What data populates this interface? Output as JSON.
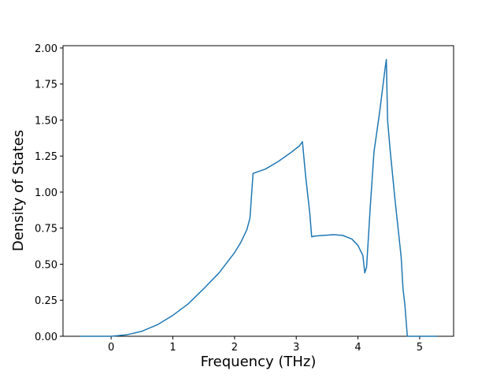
{
  "chart_data": {
    "type": "line",
    "x_label": "Frequency (THz)",
    "y_label": "Density of States",
    "x": [
      -0.5,
      0,
      0.25,
      0.5,
      0.75,
      1,
      1.25,
      1.5,
      1.75,
      2,
      2.1,
      2.2,
      2.25,
      2.3,
      2.5,
      2.7,
      2.9,
      3.05,
      3.1,
      3.15,
      3.22,
      3.25,
      3.3,
      3.45,
      3.6,
      3.75,
      3.9,
      4.0,
      4.08,
      4.11,
      4.14,
      4.2,
      4.26,
      4.35,
      4.44,
      4.46,
      4.48,
      4.52,
      4.6,
      4.7,
      4.73,
      4.76,
      4.8,
      5.0,
      5.28
    ],
    "values": [
      0,
      0,
      0.01,
      0.035,
      0.08,
      0.145,
      0.225,
      0.33,
      0.44,
      0.58,
      0.65,
      0.74,
      0.82,
      1.13,
      1.16,
      1.21,
      1.27,
      1.32,
      1.35,
      1.12,
      0.85,
      0.69,
      0.695,
      0.7,
      0.705,
      0.7,
      0.675,
      0.63,
      0.56,
      0.44,
      0.48,
      0.9,
      1.28,
      1.55,
      1.86,
      1.92,
      1.5,
      1.3,
      0.95,
      0.55,
      0.33,
      0.22,
      0,
      0,
      0
    ],
    "color": "#1f77b4",
    "xlim": [
      -0.78,
      5.55
    ],
    "xticks": [
      0,
      1,
      2,
      3,
      4,
      5
    ],
    "ylim": [
      0,
      2.016
    ],
    "yticks": [
      {
        "value": 0,
        "label": "0.00"
      },
      {
        "value": 0.25,
        "label": "0.25"
      },
      {
        "value": 0.5,
        "label": "0.50"
      },
      {
        "value": 0.75,
        "label": "0.75"
      },
      {
        "value": 1,
        "label": "1.00"
      },
      {
        "value": 1.25,
        "label": "1.25"
      },
      {
        "value": 1.5,
        "label": "1.50"
      },
      {
        "value": 1.75,
        "label": "1.75"
      },
      {
        "value": 2,
        "label": "2.00"
      }
    ]
  }
}
